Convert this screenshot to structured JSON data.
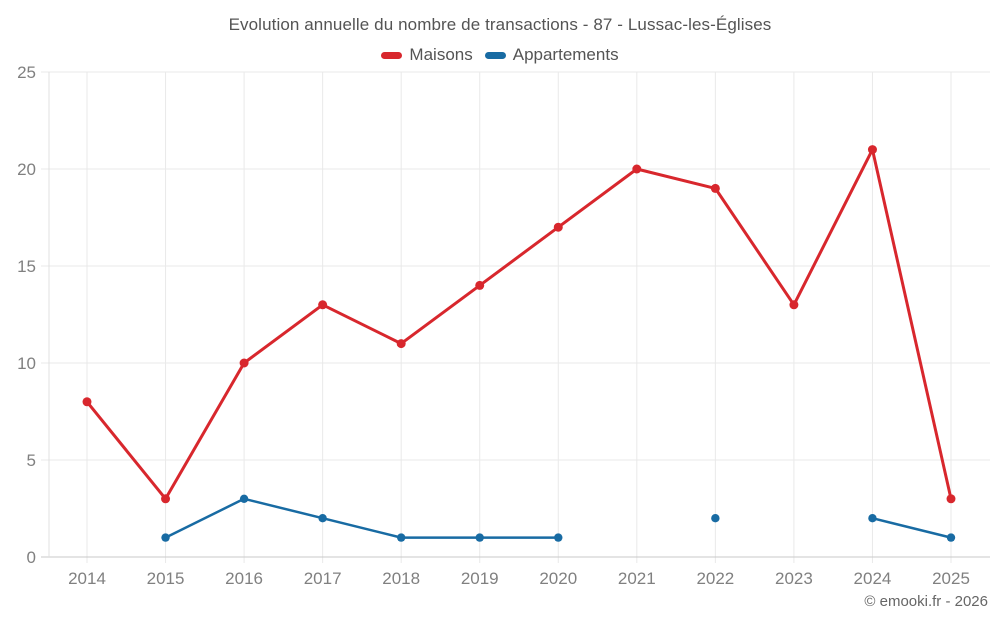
{
  "title": "Evolution annuelle du nombre de transactions - 87 - Lussac-les-Églises",
  "copyright": "© emooki.fr - 2026",
  "chart_data": {
    "type": "line",
    "title": "Evolution annuelle du nombre de transactions - 87 - Lussac-les-Églises",
    "x": [
      2014,
      2015,
      2016,
      2017,
      2018,
      2019,
      2020,
      2021,
      2022,
      2023,
      2024,
      2025
    ],
    "series": [
      {
        "name": "Maisons",
        "color": "#d8272d",
        "values": [
          8,
          3,
          10,
          13,
          11,
          14,
          17,
          20,
          19,
          13,
          21,
          3
        ]
      },
      {
        "name": "Appartements",
        "color": "#186ba3",
        "values": [
          null,
          1,
          3,
          2,
          1,
          1,
          1,
          null,
          2,
          null,
          2,
          1
        ]
      }
    ],
    "ylim": [
      0,
      25
    ],
    "yticks": [
      0,
      5,
      10,
      15,
      20,
      25
    ],
    "grid": true,
    "legend_position": "top"
  }
}
